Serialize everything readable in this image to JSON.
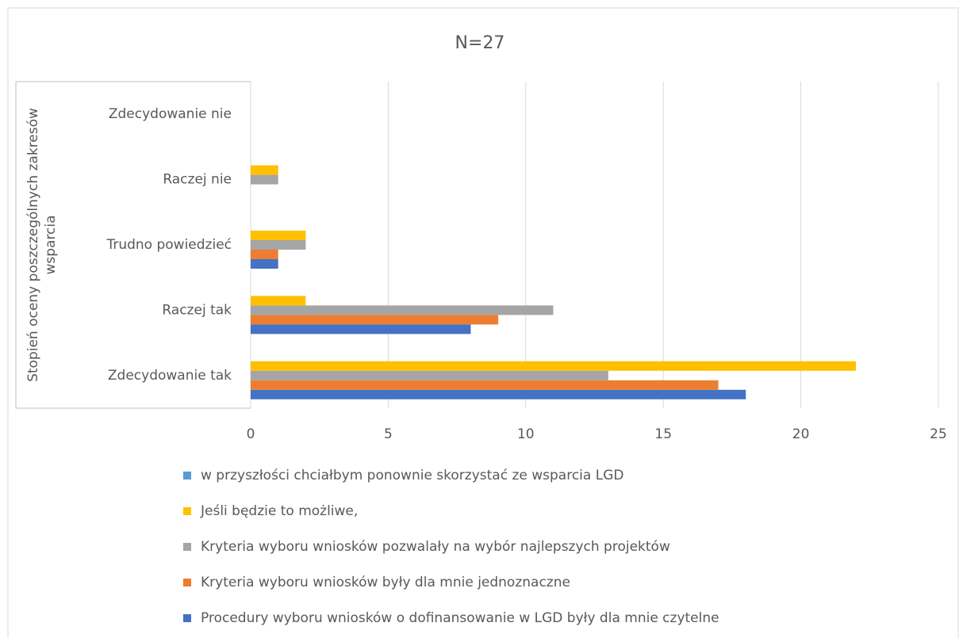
{
  "chart_data": {
    "type": "bar",
    "orientation": "horizontal",
    "title": "N=27",
    "ylabel": [
      "Stopień oceny poszczególnych zakresów",
      "wsparcia"
    ],
    "categories": [
      "Zdecydowanie tak",
      "Raczej tak",
      "Trudno powiedzieć",
      "Raczej nie",
      "Zdecydowanie nie"
    ],
    "series": [
      {
        "name": "Procedury wyboru wniosków o dofinansowanie w LGD były dla mnie czytelne",
        "color": "#4472c4",
        "values": [
          18,
          8,
          1,
          0,
          0
        ]
      },
      {
        "name": "Kryteria wyboru wniosków były dla mnie jednoznaczne",
        "color": "#ed7d31",
        "values": [
          17,
          9,
          1,
          0,
          0
        ]
      },
      {
        "name": "Kryteria wyboru wniosków pozwalały na wybór najlepszych projektów",
        "color": "#a5a5a5",
        "values": [
          13,
          11,
          2,
          1,
          0
        ]
      },
      {
        "name": "Jeśli będzie to możliwe,",
        "color": "#ffc000",
        "values": [
          22,
          2,
          2,
          1,
          0
        ]
      },
      {
        "name": "w przyszłości chciałbym ponownie skorzystać ze wsparcia LGD",
        "color": "#5b9bd5",
        "values": [
          0,
          0,
          0,
          0,
          0
        ]
      }
    ],
    "xlim": [
      0,
      25
    ],
    "xticks": [
      0,
      5,
      10,
      15,
      20,
      25
    ],
    "grid": true,
    "legend": "bottom"
  }
}
